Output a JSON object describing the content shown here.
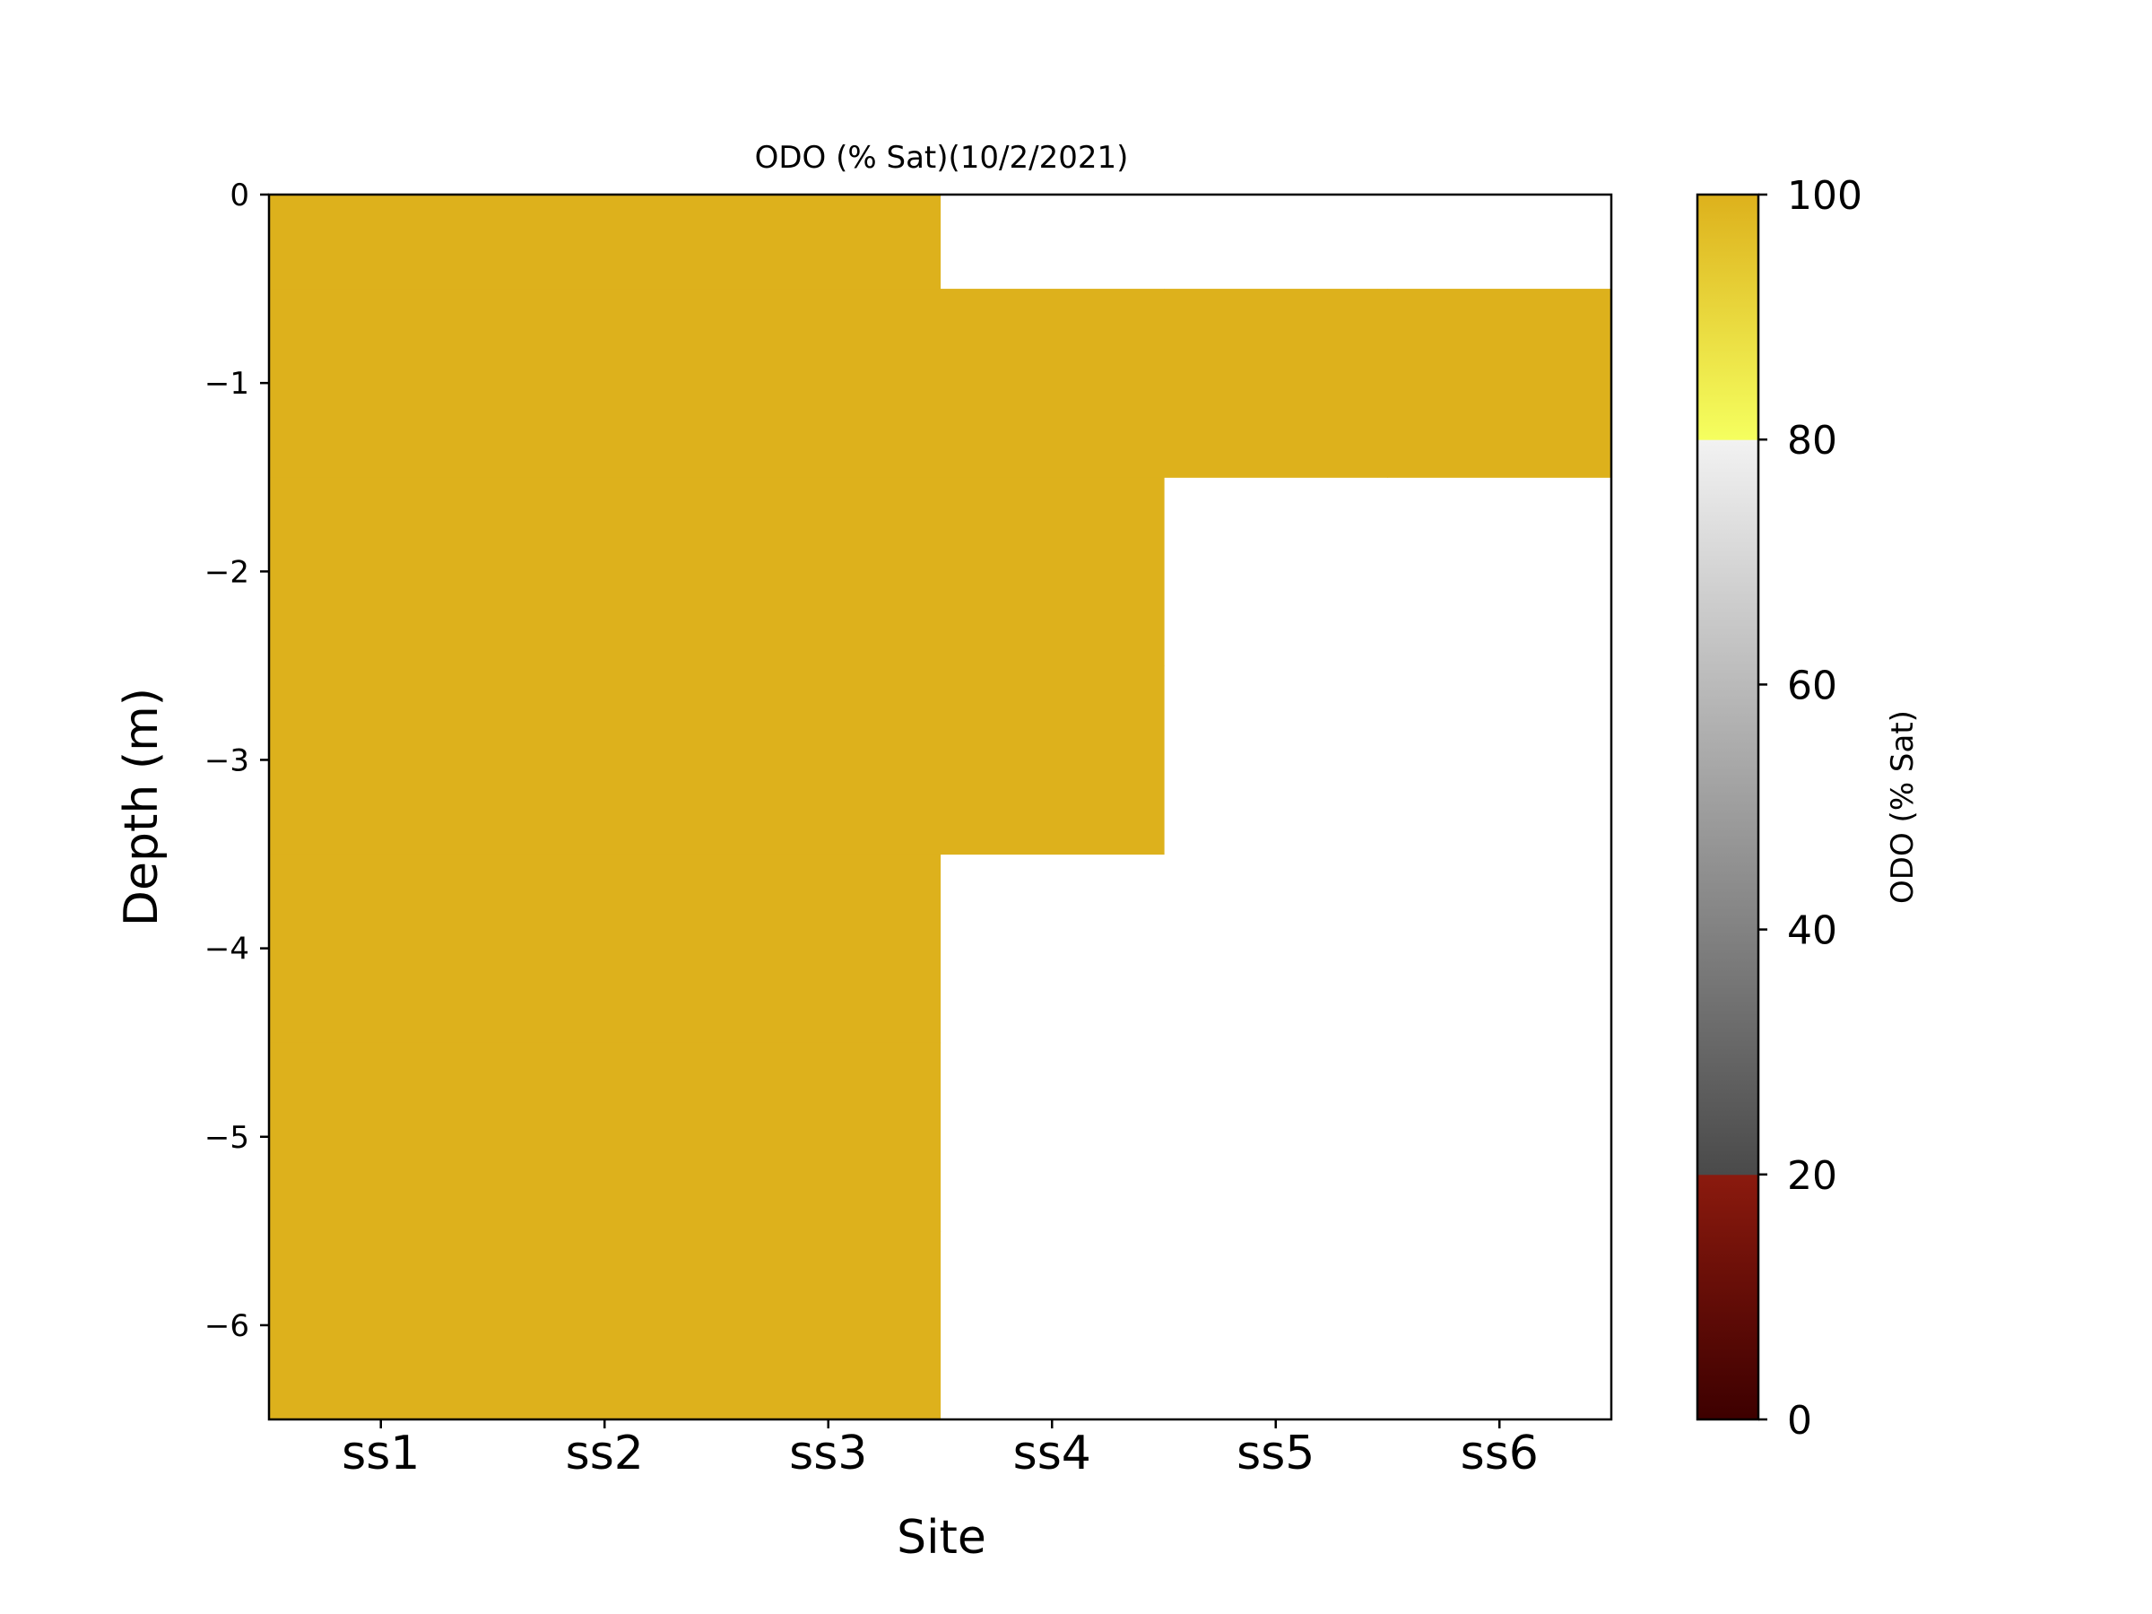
{
  "chart_data": {
    "type": "heatmap",
    "title": "ODO (% Sat)(10/2/2021)",
    "xlabel": "Site",
    "ylabel": "Depth (m)",
    "categories": [
      "ss1",
      "ss2",
      "ss3",
      "ss4",
      "ss5",
      "ss6"
    ],
    "depths": [
      0,
      -1,
      -2,
      -3,
      -4,
      -5,
      -6
    ],
    "ylim": [
      -6.5,
      0
    ],
    "yticks": [
      0,
      -1,
      -2,
      -3,
      -4,
      -5,
      -6
    ],
    "ytick_labels": [
      "0",
      "−1",
      "−2",
      "−3",
      "−4",
      "−5",
      "−6"
    ],
    "values": [
      [
        100,
        100,
        100,
        100,
        100,
        100,
        100
      ],
      [
        100,
        100,
        100,
        100,
        100,
        100,
        100
      ],
      [
        100,
        100,
        100,
        100,
        100,
        100,
        100
      ],
      [
        null,
        100,
        100,
        100,
        null,
        null,
        null
      ],
      [
        null,
        100,
        null,
        null,
        null,
        null,
        null
      ],
      [
        null,
        100,
        null,
        null,
        null,
        null,
        null
      ]
    ],
    "missing_color": "#ffffff",
    "colorbar": {
      "label": "ODO (% Sat)",
      "range": [
        0,
        100
      ],
      "ticks": [
        0,
        20,
        40,
        60,
        80,
        100
      ],
      "tick_labels": [
        "0",
        "20",
        "40",
        "60",
        "80",
        "100"
      ],
      "segments": [
        {
          "from": 0,
          "to": 20,
          "colors": [
            "#3d0000",
            "#8b1a0e"
          ]
        },
        {
          "from": 20,
          "to": 80,
          "colors": [
            "#4a4a4a",
            "#f2f2f2"
          ]
        },
        {
          "from": 80,
          "to": 100,
          "colors": [
            "#f5ff5f",
            "#ddb11c"
          ]
        }
      ]
    },
    "cell_color": "#ddb11c"
  }
}
